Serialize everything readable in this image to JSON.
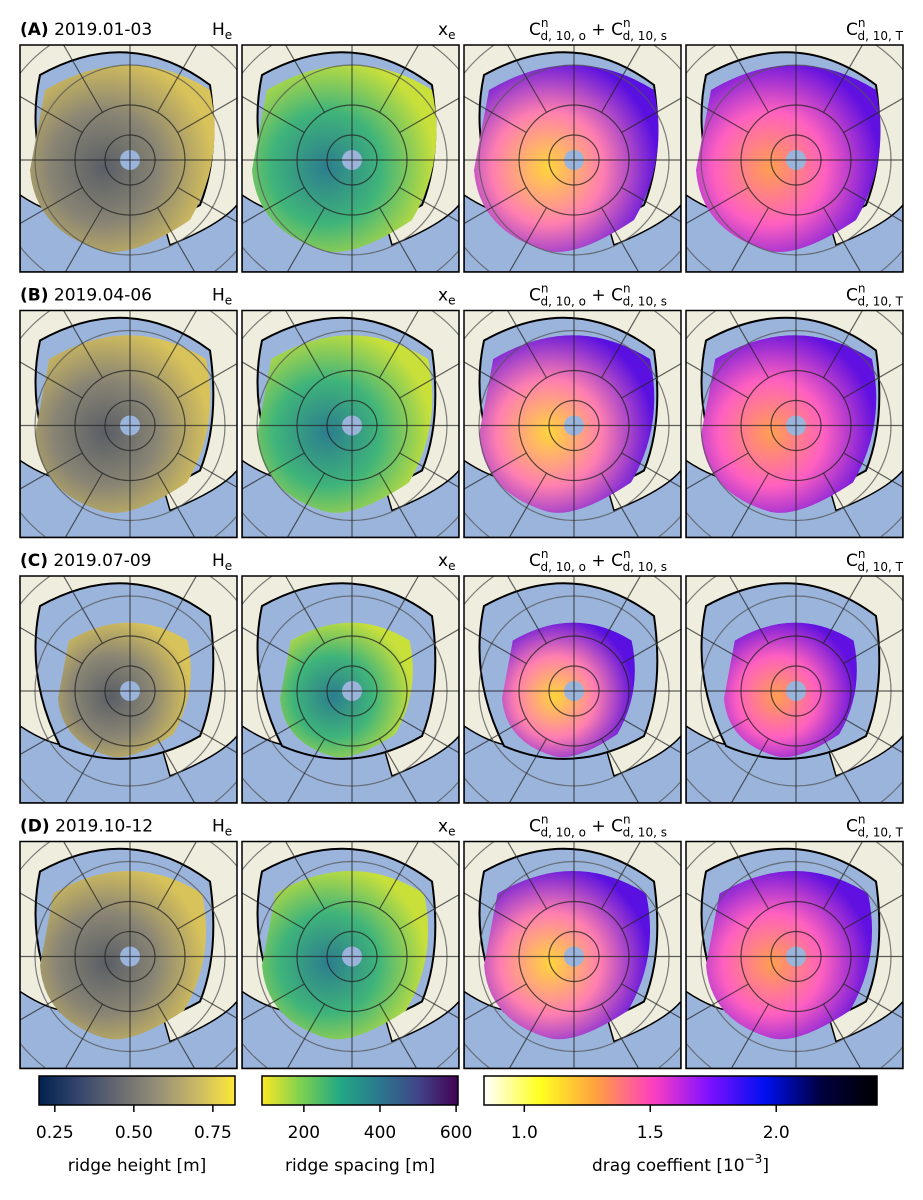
{
  "rows": [
    {
      "letter": "(A)",
      "period": "2019.01-03"
    },
    {
      "letter": "(B)",
      "period": "2019.04-06"
    },
    {
      "letter": "(C)",
      "period": "2019.07-09"
    },
    {
      "letter": "(D)",
      "period": "2019.10-12"
    }
  ],
  "column_titles": [
    {
      "parts": [
        {
          "text": "H",
          "sub": "e"
        }
      ]
    },
    {
      "parts": [
        {
          "text": "x",
          "sub": "e"
        }
      ]
    },
    {
      "parts": [
        {
          "text": "C",
          "sup": "n",
          "sub": "d, 10, o"
        },
        {
          "text": " + "
        },
        {
          "text": "C",
          "sup": "n",
          "sub": "d, 10, s"
        }
      ]
    },
    {
      "parts": [
        {
          "text": "C",
          "sup": "n",
          "sub": "d, 10, T"
        }
      ]
    }
  ],
  "colorbars": [
    {
      "label": {
        "parts": [
          {
            "text": "ridge height [m]"
          }
        ]
      },
      "lim": [
        0.2,
        0.82
      ],
      "ticks": [
        0.25,
        {
          "value": 0.5,
          "label": "0.50"
        },
        0.75
      ],
      "colors": [
        "#00224e",
        "#35456c",
        "#666970",
        "#948e77",
        "#c8b866",
        "#fee838"
      ]
    },
    {
      "label": {
        "parts": [
          {
            "text": "ridge spacing [m]"
          }
        ]
      },
      "lim": [
        90,
        605
      ],
      "ticks": [
        200,
        400,
        600
      ],
      "colors": [
        "#fde725",
        "#7ad151",
        "#22a884",
        "#2a788e",
        "#414487",
        "#440154"
      ]
    },
    {
      "label": {
        "parts": [
          {
            "text": "drag coeffient [10",
            "sup": "−3"
          },
          {
            "text": "]"
          }
        ]
      },
      "lim": [
        0.84,
        2.4
      ],
      "ticks": [
        {
          "value": 1.0,
          "label": "1.0"
        },
        {
          "value": 1.5,
          "label": "1.5"
        },
        {
          "value": 2.0,
          "label": "2.0"
        }
      ],
      "colors": [
        "#ffffff",
        "#ffff20",
        "#ffa040",
        "#ff40c0",
        "#8010ff",
        "#0010f0",
        "#000040",
        "#000000"
      ]
    }
  ]
}
